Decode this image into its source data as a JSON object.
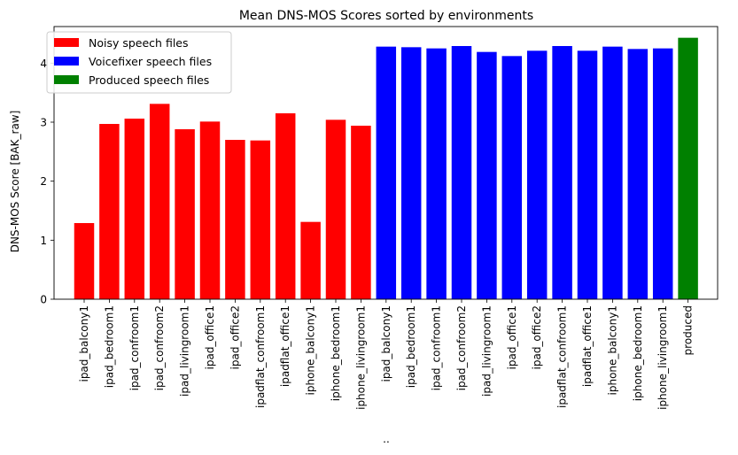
{
  "chart_data": {
    "type": "bar",
    "title": "Mean DNS-MOS Scores sorted by environments",
    "xlabel": "..",
    "ylabel": "DNS-MOS Score [BAK_raw]",
    "ylim": [
      0,
      4.62
    ],
    "yticks": [
      0,
      1,
      2,
      3,
      4
    ],
    "grid": false,
    "legend_position": "top-left",
    "categories": [
      "ipad_balcony1",
      "ipad_bedroom1",
      "ipad_confroom1",
      "ipad_confroom2",
      "ipad_livingroom1",
      "ipad_office1",
      "ipad_office2",
      "ipadflat_confroom1",
      "ipadflat_office1",
      "iphone_balcony1",
      "iphone_bedroom1",
      "iphone_livingroom1",
      "ipad_balcony1",
      "ipad_bedroom1",
      "ipad_confroom1",
      "ipad_confroom2",
      "ipad_livingroom1",
      "ipad_office1",
      "ipad_office2",
      "ipadflat_confroom1",
      "ipadflat_office1",
      "iphone_balcony1",
      "iphone_bedroom1",
      "iphone_livingroom1",
      "produced"
    ],
    "values": [
      1.29,
      2.97,
      3.06,
      3.31,
      2.88,
      3.01,
      2.7,
      2.69,
      3.15,
      1.31,
      3.04,
      2.94,
      4.28,
      4.27,
      4.25,
      4.29,
      4.19,
      4.12,
      4.21,
      4.29,
      4.21,
      4.28,
      4.24,
      4.25,
      4.43
    ],
    "bar_groups": [
      0,
      0,
      0,
      0,
      0,
      0,
      0,
      0,
      0,
      0,
      0,
      0,
      1,
      1,
      1,
      1,
      1,
      1,
      1,
      1,
      1,
      1,
      1,
      1,
      2
    ],
    "series": [
      {
        "name": "Noisy speech files",
        "color": "#ff0000"
      },
      {
        "name": "Voicefixer speech files",
        "color": "#0000ff"
      },
      {
        "name": "Produced speech files",
        "color": "#008000"
      }
    ]
  }
}
